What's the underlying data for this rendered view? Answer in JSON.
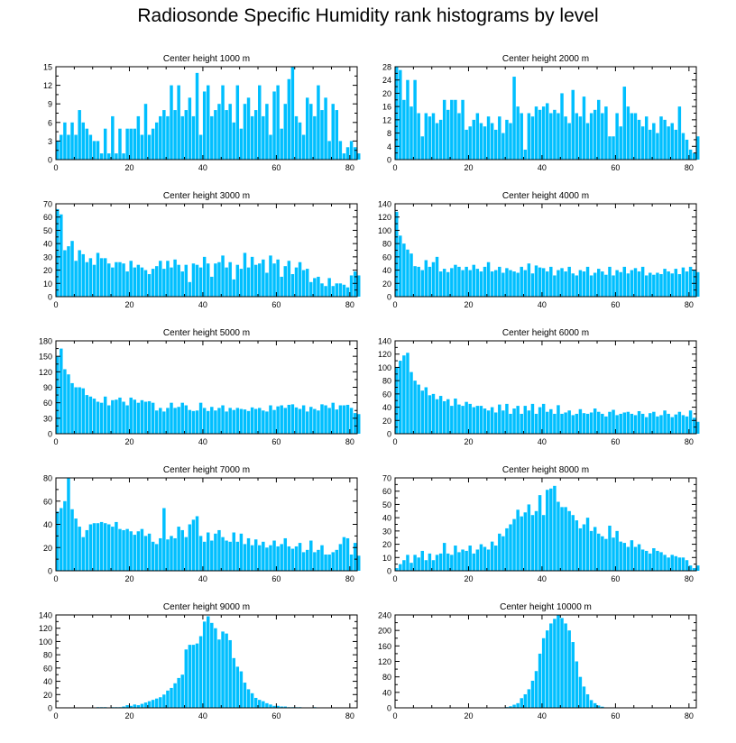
{
  "title": "Radiosonde Specific Humidity rank histograms by level",
  "bar_color": "#00bfff",
  "chart_data": [
    {
      "type": "bar",
      "title": "Center height 1000 m",
      "xlabel": "",
      "ylabel": "",
      "xlim": [
        0,
        82
      ],
      "ylim": [
        0,
        15
      ],
      "xticks": [
        0,
        20,
        40,
        60,
        80
      ],
      "yticks": [
        0,
        3,
        6,
        9,
        12,
        15
      ],
      "values": [
        3,
        4,
        6,
        4,
        6,
        4,
        8,
        6,
        5,
        4,
        3,
        3,
        1,
        5,
        1,
        7,
        1,
        5,
        1,
        5,
        5,
        5,
        7,
        4,
        9,
        4,
        5,
        6,
        7,
        8,
        7,
        12,
        8,
        12,
        7,
        8,
        10,
        7,
        14,
        4,
        11,
        12,
        7,
        8,
        9,
        12,
        8,
        9,
        6,
        12,
        5,
        9,
        10,
        7,
        8,
        12,
        7,
        9,
        4,
        11,
        12,
        5,
        9,
        13,
        15,
        7,
        6,
        4,
        10,
        9,
        7,
        12,
        8,
        10,
        3,
        9,
        8,
        3,
        1,
        2,
        3,
        2,
        1
      ]
    },
    {
      "type": "bar",
      "title": "Center height 2000 m",
      "xlabel": "",
      "ylabel": "",
      "xlim": [
        0,
        82
      ],
      "ylim": [
        0,
        28
      ],
      "xticks": [
        0,
        20,
        40,
        60,
        80
      ],
      "yticks": [
        0,
        4,
        8,
        12,
        16,
        20,
        24,
        28
      ],
      "values": [
        28,
        27,
        18,
        24,
        16,
        24,
        14,
        7,
        14,
        13,
        14,
        11,
        12,
        18,
        15,
        18,
        18,
        14,
        18,
        9,
        10,
        12,
        14,
        11,
        10,
        13,
        11,
        9,
        13,
        8,
        12,
        11,
        25,
        16,
        14,
        3,
        14,
        13,
        16,
        15,
        16,
        17,
        14,
        15,
        14,
        20,
        13,
        11,
        21,
        14,
        13,
        19,
        11,
        14,
        15,
        18,
        14,
        16,
        7,
        7,
        14,
        10,
        22,
        16,
        14,
        14,
        12,
        10,
        13,
        9,
        11,
        8,
        13,
        12,
        10,
        11,
        9,
        16,
        8,
        6,
        3,
        2,
        7
      ]
    },
    {
      "type": "bar",
      "title": "Center height 3000 m",
      "xlabel": "",
      "ylabel": "",
      "xlim": [
        0,
        82
      ],
      "ylim": [
        0,
        70
      ],
      "xticks": [
        0,
        20,
        40,
        60,
        80
      ],
      "yticks": [
        0,
        10,
        20,
        30,
        40,
        50,
        60,
        70
      ],
      "values": [
        66,
        62,
        35,
        38,
        42,
        27,
        35,
        32,
        26,
        29,
        24,
        33,
        29,
        29,
        25,
        22,
        26,
        26,
        25,
        19,
        27,
        22,
        24,
        22,
        20,
        17,
        21,
        23,
        27,
        21,
        27,
        22,
        28,
        24,
        19,
        24,
        11,
        25,
        24,
        22,
        30,
        25,
        15,
        25,
        26,
        31,
        22,
        26,
        13,
        24,
        21,
        33,
        22,
        30,
        24,
        25,
        28,
        18,
        31,
        25,
        28,
        15,
        23,
        27,
        17,
        22,
        26,
        20,
        21,
        11,
        14,
        15,
        10,
        8,
        14,
        8,
        10,
        10,
        9,
        7,
        16,
        19,
        16
      ]
    },
    {
      "type": "bar",
      "title": "Center height 4000 m",
      "xlabel": "",
      "ylabel": "",
      "xlim": [
        0,
        82
      ],
      "ylim": [
        0,
        140
      ],
      "xticks": [
        0,
        20,
        40,
        60,
        80
      ],
      "yticks": [
        0,
        20,
        40,
        60,
        80,
        100,
        120,
        140
      ],
      "values": [
        128,
        92,
        80,
        71,
        65,
        46,
        45,
        40,
        55,
        45,
        52,
        60,
        38,
        42,
        37,
        43,
        48,
        45,
        40,
        45,
        40,
        48,
        42,
        38,
        45,
        52,
        38,
        40,
        45,
        36,
        43,
        40,
        38,
        36,
        45,
        40,
        50,
        35,
        47,
        44,
        43,
        38,
        45,
        32,
        40,
        43,
        38,
        45,
        35,
        32,
        40,
        38,
        45,
        32,
        36,
        42,
        38,
        33,
        45,
        32,
        40,
        37,
        45,
        35,
        40,
        43,
        38,
        45,
        32,
        36,
        33,
        36,
        34,
        42,
        38,
        35,
        42,
        34,
        44,
        38,
        45,
        40,
        37
      ]
    },
    {
      "type": "bar",
      "title": "Center height 5000 m",
      "xlabel": "",
      "ylabel": "",
      "xlim": [
        0,
        82
      ],
      "ylim": [
        0,
        180
      ],
      "xticks": [
        0,
        20,
        40,
        60,
        80
      ],
      "yticks": [
        0,
        30,
        60,
        90,
        120,
        150,
        180
      ],
      "values": [
        150,
        165,
        125,
        115,
        98,
        90,
        90,
        88,
        75,
        72,
        68,
        62,
        60,
        72,
        55,
        65,
        66,
        70,
        62,
        55,
        70,
        66,
        60,
        65,
        62,
        63,
        60,
        45,
        50,
        43,
        50,
        60,
        50,
        52,
        60,
        55,
        46,
        44,
        45,
        60,
        50,
        44,
        52,
        45,
        50,
        55,
        43,
        50,
        46,
        50,
        48,
        47,
        44,
        51,
        48,
        50,
        45,
        43,
        55,
        46,
        53,
        55,
        50,
        56,
        57,
        51,
        48,
        55,
        43,
        52,
        48,
        45,
        57,
        55,
        50,
        60,
        47,
        55,
        55,
        56,
        50,
        40,
        38
      ]
    },
    {
      "type": "bar",
      "title": "Center height 6000 m",
      "xlabel": "",
      "ylabel": "",
      "xlim": [
        0,
        82
      ],
      "ylim": [
        0,
        140
      ],
      "xticks": [
        0,
        20,
        40,
        60,
        80
      ],
      "yticks": [
        0,
        20,
        40,
        60,
        80,
        100,
        120,
        140
      ],
      "values": [
        100,
        110,
        118,
        122,
        93,
        80,
        74,
        65,
        70,
        58,
        60,
        52,
        57,
        49,
        52,
        42,
        53,
        44,
        42,
        48,
        45,
        40,
        42,
        42,
        38,
        35,
        40,
        32,
        44,
        35,
        45,
        30,
        38,
        42,
        30,
        42,
        35,
        45,
        30,
        40,
        45,
        33,
        37,
        30,
        43,
        30,
        32,
        35,
        28,
        30,
        37,
        31,
        30,
        32,
        38,
        33,
        30,
        26,
        33,
        36,
        28,
        30,
        32,
        33,
        30,
        28,
        34,
        30,
        25,
        31,
        33,
        26,
        28,
        35,
        30,
        25,
        29,
        33,
        28,
        26,
        35,
        24,
        18
      ]
    },
    {
      "type": "bar",
      "title": "Center height 7000 m",
      "xlabel": "",
      "ylabel": "",
      "xlim": [
        0,
        82
      ],
      "ylim": [
        0,
        80
      ],
      "xticks": [
        0,
        20,
        40,
        60,
        80
      ],
      "yticks": [
        0,
        20,
        40,
        60,
        80
      ],
      "values": [
        51,
        54,
        60,
        80,
        53,
        45,
        38,
        29,
        35,
        40,
        41,
        41,
        42,
        41,
        40,
        38,
        42,
        36,
        35,
        36,
        34,
        31,
        34,
        36,
        30,
        32,
        25,
        23,
        28,
        54,
        27,
        30,
        28,
        38,
        35,
        29,
        40,
        44,
        47,
        30,
        25,
        33,
        26,
        32,
        35,
        29,
        26,
        25,
        33,
        25,
        32,
        23,
        28,
        22,
        27,
        22,
        25,
        20,
        22,
        26,
        21,
        23,
        28,
        21,
        19,
        21,
        24,
        16,
        18,
        26,
        16,
        18,
        22,
        14,
        14,
        16,
        18,
        23,
        29,
        28,
        14,
        24,
        13
      ]
    },
    {
      "type": "bar",
      "title": "Center height 8000 m",
      "xlabel": "",
      "ylabel": "",
      "xlim": [
        0,
        82
      ],
      "ylim": [
        0,
        70
      ],
      "xticks": [
        0,
        20,
        40,
        60,
        80
      ],
      "yticks": [
        0,
        10,
        20,
        30,
        40,
        50,
        60,
        70
      ],
      "values": [
        2,
        5,
        8,
        12,
        6,
        12,
        10,
        15,
        8,
        13,
        8,
        12,
        13,
        21,
        13,
        12,
        19,
        14,
        16,
        15,
        19,
        13,
        16,
        20,
        18,
        16,
        22,
        19,
        28,
        26,
        32,
        35,
        39,
        46,
        41,
        44,
        50,
        42,
        45,
        57,
        42,
        61,
        62,
        64,
        52,
        48,
        48,
        45,
        42,
        38,
        32,
        35,
        40,
        30,
        33,
        28,
        26,
        24,
        34,
        25,
        30,
        22,
        21,
        18,
        23,
        18,
        20,
        16,
        15,
        13,
        17,
        15,
        14,
        12,
        10,
        12,
        11,
        10,
        10,
        8,
        4,
        2,
        4
      ]
    },
    {
      "type": "bar",
      "title": "Center height 9000 m",
      "xlabel": "",
      "ylabel": "",
      "xlim": [
        0,
        82
      ],
      "ylim": [
        0,
        140
      ],
      "xticks": [
        0,
        20,
        40,
        60,
        80
      ],
      "yticks": [
        0,
        20,
        40,
        60,
        80,
        100,
        120,
        140
      ],
      "values": [
        0,
        0,
        0,
        0,
        0,
        0,
        0,
        0,
        0,
        0,
        0,
        1,
        1,
        1,
        0,
        1,
        1,
        1,
        2,
        4,
        3,
        5,
        4,
        6,
        8,
        10,
        12,
        14,
        16,
        20,
        26,
        30,
        37,
        45,
        50,
        88,
        95,
        95,
        97,
        108,
        130,
        138,
        128,
        120,
        103,
        115,
        112,
        102,
        75,
        62,
        55,
        38,
        28,
        22,
        15,
        12,
        10,
        7,
        5,
        3,
        3,
        2,
        2,
        1,
        1,
        1,
        1,
        0,
        0,
        0,
        1,
        0,
        0,
        0,
        0,
        0,
        0,
        0,
        0,
        0,
        0,
        0,
        0
      ]
    },
    {
      "type": "bar",
      "title": "Center height 10000 m",
      "xlabel": "",
      "ylabel": "",
      "xlim": [
        0,
        82
      ],
      "ylim": [
        0,
        240
      ],
      "xticks": [
        0,
        20,
        40,
        60,
        80
      ],
      "yticks": [
        0,
        40,
        80,
        120,
        160,
        200,
        240
      ],
      "values": [
        0,
        0,
        0,
        0,
        0,
        0,
        0,
        0,
        0,
        0,
        0,
        0,
        0,
        0,
        0,
        0,
        0,
        0,
        0,
        0,
        0,
        0,
        0,
        0,
        0,
        0,
        0,
        0,
        0,
        0,
        2,
        4,
        8,
        12,
        25,
        35,
        48,
        70,
        95,
        140,
        180,
        200,
        218,
        230,
        240,
        232,
        218,
        200,
        170,
        120,
        80,
        55,
        35,
        20,
        12,
        6,
        3,
        1,
        0,
        0,
        0,
        0,
        0,
        0,
        0,
        0,
        0,
        0,
        0,
        0,
        0,
        0,
        0,
        0,
        0,
        0,
        0,
        0,
        0,
        0,
        0,
        0,
        0
      ]
    }
  ]
}
